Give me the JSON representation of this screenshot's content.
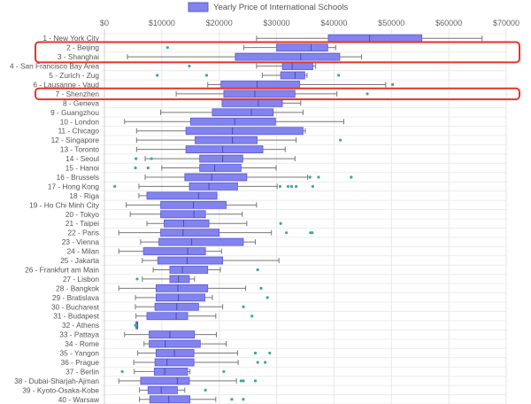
{
  "chart_data": {
    "type": "boxplot",
    "orientation": "horizontal",
    "title": "",
    "legend": {
      "label": "Yearly Price of International Schools",
      "position": "top"
    },
    "xlabel": "",
    "ylabel": "",
    "xlim": [
      0,
      70000
    ],
    "x_ticks": [
      "$0",
      "$10000",
      "$20000",
      "$30000",
      "$40000",
      "$50000",
      "$60000",
      "$70000"
    ],
    "grid": true,
    "colors": {
      "box_fill": "#8383f0",
      "box_stroke": "#5959d6",
      "whisker": "#777777",
      "outlier": "#3aa89a",
      "highlight": "#e8342a"
    },
    "highlighted": [
      "2 - Beijing",
      "3 - Shanghai",
      "7 - Shenzhen"
    ],
    "categories": [
      "1 - New York City",
      "2 - Beijing",
      "3 - Shanghai",
      "4 - San Francisco Bay Area",
      "5 - Zurich - Zug",
      "6 - Lausanne - Vaud",
      "7 - Shenzhen",
      "8 - Geneva",
      "9 - Guangzhou",
      "10 - London",
      "11 - Chicago",
      "12 - Singapore",
      "13 - Toronto",
      "14 - Seoul",
      "15 - Hanoi",
      "16 - Brussels",
      "17 - Hong Kong",
      "18 - Riga",
      "19 - Ho Chi Minh City",
      "20 - Tokyo",
      "21 - Taipei",
      "22 - Paris",
      "23 - Vienna",
      "24 - Milan",
      "25 - Jakarta",
      "26 - Frankfurt am Main",
      "27 - Lisbon",
      "28 - Bangkok",
      "29 - Bratislava",
      "30 - Bucharest",
      "31 - Budapest",
      "32 - Athens",
      "33 - Pattaya",
      "34 - Rome",
      "35 - Yangon",
      "36 - Prague",
      "37 - Berlin",
      "38 - Dubai-Sharjah-Ajman",
      "39 - Kyoto-Osaka-Kobe",
      "40 - Warsaw"
    ],
    "boxes": [
      {
        "min": 26500,
        "q1": 39000,
        "median": 46200,
        "q3": 55300,
        "max": 65800,
        "outliers": []
      },
      {
        "min": 24300,
        "q1": 30000,
        "median": 36000,
        "q3": 38900,
        "max": 40300,
        "outliers": [
          11000
        ]
      },
      {
        "min": 4000,
        "q1": 22800,
        "median": 34200,
        "q3": 41000,
        "max": 44800,
        "outliers": []
      },
      {
        "min": 26500,
        "q1": 31000,
        "median": 32700,
        "q3": 36300,
        "max": 36800,
        "outliers": [
          14800
        ]
      },
      {
        "min": 27500,
        "q1": 30700,
        "median": 33200,
        "q3": 34900,
        "max": 35300,
        "outliers": [
          9200,
          17800,
          40800
        ]
      },
      {
        "min": 18000,
        "q1": 20300,
        "median": 26600,
        "q3": 34000,
        "max": 49000,
        "outliers": [
          50200
        ]
      },
      {
        "min": 12500,
        "q1": 20800,
        "median": 26200,
        "q3": 33200,
        "max": 40500,
        "outliers": [
          45800
        ]
      },
      {
        "min": 20500,
        "q1": 20500,
        "median": 26800,
        "q3": 31000,
        "max": 34200,
        "outliers": []
      },
      {
        "min": 9800,
        "q1": 18800,
        "median": 25600,
        "q3": 29400,
        "max": 34600,
        "outliers": []
      },
      {
        "min": 3500,
        "q1": 15000,
        "median": 22700,
        "q3": 29800,
        "max": 41700,
        "outliers": []
      },
      {
        "min": 5600,
        "q1": 14200,
        "median": 22300,
        "q3": 34600,
        "max": 35000,
        "outliers": []
      },
      {
        "min": 5600,
        "q1": 15800,
        "median": 22300,
        "q3": 26600,
        "max": 33400,
        "outliers": [
          41100
        ]
      },
      {
        "min": 5600,
        "q1": 14200,
        "median": 20600,
        "q3": 27600,
        "max": 31500,
        "outliers": []
      },
      {
        "min": 7100,
        "q1": 16600,
        "median": 20600,
        "q3": 24100,
        "max": 33200,
        "outliers": [
          5500,
          8200
        ]
      },
      {
        "min": 10000,
        "q1": 16600,
        "median": 19200,
        "q3": 23800,
        "max": 29900,
        "outliers": [
          5400,
          7600
        ]
      },
      {
        "min": 7100,
        "q1": 14000,
        "median": 18700,
        "q3": 24800,
        "max": 35400,
        "outliers": [
          35800,
          37300,
          43000
        ]
      },
      {
        "min": 6000,
        "q1": 14800,
        "median": 18200,
        "q3": 23200,
        "max": 30100,
        "outliers": [
          1800,
          30600,
          32000,
          32600,
          33400,
          36300
        ]
      },
      {
        "min": 6000,
        "q1": 7400,
        "median": 16400,
        "q3": 19600,
        "max": 19600,
        "outliers": []
      },
      {
        "min": 3800,
        "q1": 9800,
        "median": 15500,
        "q3": 21200,
        "max": 26500,
        "outliers": []
      },
      {
        "min": 4500,
        "q1": 9800,
        "median": 15600,
        "q3": 17600,
        "max": 24000,
        "outliers": []
      },
      {
        "min": 7400,
        "q1": 10400,
        "median": 13800,
        "q3": 18200,
        "max": 24800,
        "outliers": [
          30700
        ]
      },
      {
        "min": 2500,
        "q1": 9800,
        "median": 13700,
        "q3": 20000,
        "max": 29100,
        "outliers": [
          31700,
          35900,
          36200
        ]
      },
      {
        "min": 6300,
        "q1": 9500,
        "median": 15200,
        "q3": 24200,
        "max": 26300,
        "outliers": []
      },
      {
        "min": 2500,
        "q1": 6800,
        "median": 14500,
        "q3": 17600,
        "max": 20400,
        "outliers": []
      },
      {
        "min": 6600,
        "q1": 9300,
        "median": 14400,
        "q3": 20600,
        "max": 30400,
        "outliers": []
      },
      {
        "min": 8500,
        "q1": 11400,
        "median": 13600,
        "q3": 18000,
        "max": 20200,
        "outliers": [
          26700
        ]
      },
      {
        "min": 6600,
        "q1": 11400,
        "median": 12900,
        "q3": 14800,
        "max": 15700,
        "outliers": [
          5700
        ]
      },
      {
        "min": 2500,
        "q1": 9000,
        "median": 12800,
        "q3": 18000,
        "max": 24600,
        "outliers": [
          27300
        ]
      },
      {
        "min": 5400,
        "q1": 9000,
        "median": 12900,
        "q3": 17500,
        "max": 18800,
        "outliers": [
          28400
        ]
      },
      {
        "min": 5400,
        "q1": 8800,
        "median": 12600,
        "q3": 16400,
        "max": 20600,
        "outliers": [
          24200
        ]
      },
      {
        "min": 5500,
        "q1": 7400,
        "median": 12500,
        "q3": 14500,
        "max": 19400,
        "outliers": [
          25700
        ]
      },
      {
        "min": 5500,
        "q1": 5500,
        "median": 5700,
        "q3": 5800,
        "max": 5800,
        "outliers": [
          5400,
          5500
        ]
      },
      {
        "min": 3500,
        "q1": 7800,
        "median": 11400,
        "q3": 15700,
        "max": 19500,
        "outliers": []
      },
      {
        "min": 6900,
        "q1": 7800,
        "median": 10600,
        "q3": 16700,
        "max": 21200,
        "outliers": []
      },
      {
        "min": 5800,
        "q1": 9000,
        "median": 12200,
        "q3": 15600,
        "max": 23200,
        "outliers": [
          26300,
          28800
        ]
      },
      {
        "min": 5100,
        "q1": 8800,
        "median": 10900,
        "q3": 15600,
        "max": 23300,
        "outliers": [
          26700,
          28000
        ]
      },
      {
        "min": 5200,
        "q1": 8700,
        "median": 10500,
        "q3": 14500,
        "max": 14900,
        "outliers": [
          3100,
          20800
        ]
      },
      {
        "min": 2500,
        "q1": 6300,
        "median": 12700,
        "q3": 14800,
        "max": 23000,
        "outliers": [
          23800,
          24200,
          26300
        ]
      },
      {
        "min": 6100,
        "q1": 7600,
        "median": 9900,
        "q3": 12700,
        "max": 14000,
        "outliers": [
          17600
        ]
      },
      {
        "min": 6100,
        "q1": 7900,
        "median": 11200,
        "q3": 14900,
        "max": 19400,
        "outliers": [
          22200,
          24200
        ]
      }
    ]
  }
}
